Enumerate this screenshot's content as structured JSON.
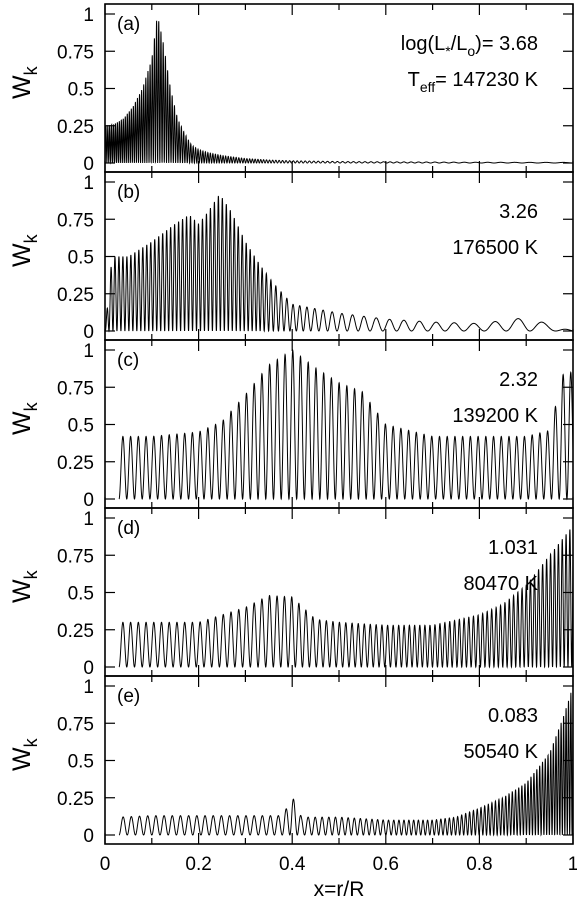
{
  "chart_data": [
    {
      "type": "line",
      "panel_label": "(a)",
      "ylabel": "W",
      "ylabel_sub": "k",
      "ylim": [
        0,
        1
      ],
      "xlim": [
        0,
        1
      ],
      "yticks": [
        0,
        0.25,
        0.5,
        0.75,
        1
      ],
      "ytick_labels": [
        "0",
        "0.25",
        "0.5",
        "0.75",
        "1"
      ],
      "annotation_lines": [
        {
          "prefix": "log(L",
          "sub1": "*",
          "mid": "/L",
          "sub2": "o",
          "suffix": ")= 3.68"
        },
        {
          "prefix": "T",
          "sub1": "eff",
          "suffix": "=  147230 K"
        }
      ],
      "series": [
        {
          "points": [
            [
              0.0,
              0.25
            ],
            [
              0.02,
              0.26
            ],
            [
              0.04,
              0.3
            ],
            [
              0.06,
              0.38
            ],
            [
              0.08,
              0.5
            ],
            [
              0.1,
              0.7
            ],
            [
              0.112,
              1.0
            ],
            [
              0.125,
              0.8
            ],
            [
              0.14,
              0.5
            ],
            [
              0.155,
              0.3
            ],
            [
              0.17,
              0.2
            ],
            [
              0.185,
              0.12
            ],
            [
              0.2,
              0.09
            ],
            [
              0.22,
              0.07
            ],
            [
              0.25,
              0.05
            ],
            [
              0.3,
              0.03
            ],
            [
              0.35,
              0.02
            ],
            [
              0.4,
              0.015
            ],
            [
              0.5,
              0.01
            ],
            [
              0.6,
              0.008
            ],
            [
              0.8,
              0.005
            ],
            [
              1.0,
              0.004
            ]
          ],
          "oscillation_periods": [
            0.004,
            0.006,
            0.016,
            0.04
          ]
        }
      ]
    },
    {
      "type": "line",
      "panel_label": "(b)",
      "ylabel": "W",
      "ylabel_sub": "k",
      "ylim": [
        0,
        1
      ],
      "xlim": [
        0,
        1
      ],
      "yticks": [
        0,
        0.25,
        0.5,
        0.75,
        1
      ],
      "ytick_labels": [
        "0",
        "0.25",
        "0.5",
        "0.75",
        "1"
      ],
      "annotation_lines": [
        {
          "prefix": "3.26"
        },
        {
          "prefix": "176500 K"
        }
      ],
      "series": [
        {
          "points": [
            [
              0.0,
              0.0
            ],
            [
              0.015,
              0.5
            ],
            [
              0.05,
              0.5
            ],
            [
              0.1,
              0.6
            ],
            [
              0.15,
              0.72
            ],
            [
              0.18,
              0.78
            ],
            [
              0.2,
              0.72
            ],
            [
              0.22,
              0.8
            ],
            [
              0.245,
              0.92
            ],
            [
              0.27,
              0.8
            ],
            [
              0.3,
              0.6
            ],
            [
              0.33,
              0.45
            ],
            [
              0.36,
              0.32
            ],
            [
              0.38,
              0.25
            ],
            [
              0.4,
              0.18
            ],
            [
              0.45,
              0.15
            ],
            [
              0.5,
              0.12
            ],
            [
              0.6,
              0.08
            ],
            [
              0.7,
              0.06
            ],
            [
              0.8,
              0.05
            ],
            [
              0.9,
              0.09
            ],
            [
              1.0,
              0.0
            ]
          ],
          "oscillation_periods": [
            0.0085,
            0.0085,
            0.034,
            0.06
          ]
        }
      ]
    },
    {
      "type": "line",
      "panel_label": "(c)",
      "ylabel": "W",
      "ylabel_sub": "k",
      "ylim": [
        0,
        1
      ],
      "xlim": [
        0,
        1
      ],
      "yticks": [
        0,
        0.25,
        0.5,
        0.75,
        1
      ],
      "ytick_labels": [
        "0",
        "0.25",
        "0.5",
        "0.75",
        "1"
      ],
      "annotation_lines": [
        {
          "prefix": "2.32"
        },
        {
          "prefix": "139200 K"
        }
      ],
      "series": [
        {
          "points": [
            [
              0.03,
              0.42
            ],
            [
              0.1,
              0.42
            ],
            [
              0.2,
              0.45
            ],
            [
              0.25,
              0.52
            ],
            [
              0.3,
              0.7
            ],
            [
              0.35,
              0.9
            ],
            [
              0.4,
              1.0
            ],
            [
              0.45,
              0.88
            ],
            [
              0.5,
              0.78
            ],
            [
              0.55,
              0.72
            ],
            [
              0.6,
              0.5
            ],
            [
              0.7,
              0.42
            ],
            [
              0.8,
              0.42
            ],
            [
              0.9,
              0.42
            ],
            [
              0.95,
              0.46
            ],
            [
              0.98,
              0.85
            ],
            [
              1.0,
              0.85
            ]
          ],
          "oscillation_periods": [
            0.0165,
            0.0165,
            0.0165,
            0.0165
          ]
        }
      ]
    },
    {
      "type": "line",
      "panel_label": "(d)",
      "ylabel": "W",
      "ylabel_sub": "k",
      "ylim": [
        0,
        1
      ],
      "xlim": [
        0,
        1
      ],
      "yticks": [
        0,
        0.25,
        0.5,
        0.75,
        1
      ],
      "ytick_labels": [
        "0",
        "0.25",
        "0.5",
        "0.75",
        "1"
      ],
      "annotation_lines": [
        {
          "prefix": "1.031"
        },
        {
          "prefix": "80470 K"
        }
      ],
      "series": [
        {
          "points": [
            [
              0.03,
              0.3
            ],
            [
              0.1,
              0.3
            ],
            [
              0.2,
              0.3
            ],
            [
              0.3,
              0.4
            ],
            [
              0.35,
              0.48
            ],
            [
              0.4,
              0.47
            ],
            [
              0.45,
              0.32
            ],
            [
              0.5,
              0.3
            ],
            [
              0.6,
              0.28
            ],
            [
              0.7,
              0.28
            ],
            [
              0.8,
              0.35
            ],
            [
              0.85,
              0.42
            ],
            [
              0.9,
              0.55
            ],
            [
              0.95,
              0.75
            ],
            [
              1.0,
              0.95
            ]
          ],
          "oscillation_periods": [
            0.0165,
            0.0165,
            0.011,
            0.008
          ]
        }
      ]
    },
    {
      "type": "line",
      "panel_label": "(e)",
      "ylabel": "W",
      "ylabel_sub": "k",
      "ylim": [
        0,
        1
      ],
      "xlim": [
        0,
        1
      ],
      "yticks": [
        0,
        0.25,
        0.5,
        0.75,
        1
      ],
      "ytick_labels": [
        "0",
        "0.25",
        "0.5",
        "0.75",
        "1"
      ],
      "xlabel": "x=r/R",
      "xticks": [
        0,
        0.2,
        0.4,
        0.6,
        0.8,
        1
      ],
      "xtick_labels": [
        "0",
        "0.2",
        "0.4",
        "0.6",
        "0.8",
        "1"
      ],
      "annotation_lines": [
        {
          "prefix": "0.083"
        },
        {
          "prefix": "50540 K"
        }
      ],
      "series": [
        {
          "points": [
            [
              0.03,
              0.12
            ],
            [
              0.1,
              0.13
            ],
            [
              0.2,
              0.13
            ],
            [
              0.3,
              0.13
            ],
            [
              0.38,
              0.13
            ],
            [
              0.4,
              0.26
            ],
            [
              0.42,
              0.12
            ],
            [
              0.5,
              0.12
            ],
            [
              0.6,
              0.1
            ],
            [
              0.7,
              0.1
            ],
            [
              0.75,
              0.12
            ],
            [
              0.8,
              0.18
            ],
            [
              0.85,
              0.25
            ],
            [
              0.9,
              0.35
            ],
            [
              0.95,
              0.55
            ],
            [
              0.98,
              0.8
            ],
            [
              1.0,
              1.0
            ]
          ],
          "oscillation_periods": [
            0.0175,
            0.0175,
            0.01,
            0.005
          ]
        }
      ]
    }
  ]
}
